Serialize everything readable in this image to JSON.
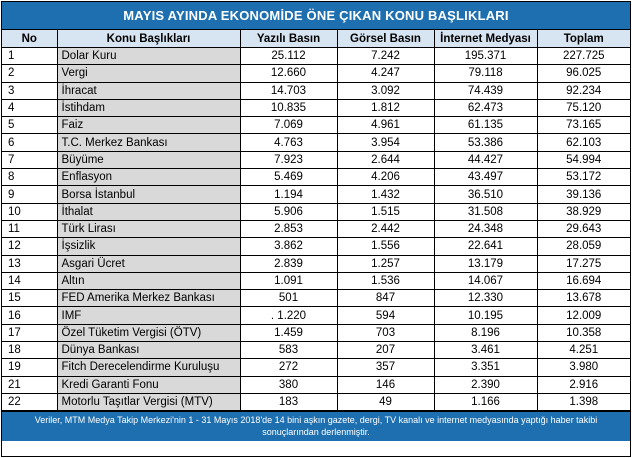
{
  "title": "MAYIS AYINDA EKONOMİDE ÖNE ÇIKAN KONU BAŞLIKLARI",
  "note": "Veriler, MTM Medya Takip Merkezi'nin 1 - 31 Mayıs 2018'de 14 bini aşkın gazete, dergi, TV kanalı ve internet medyasında yaptığı haber takibi sonuçlarından derlenmiştir.",
  "colors": {
    "header_band": "#1e6fb0",
    "column_header": "#d7e4f2",
    "topic_cell": "#d9d9d9"
  },
  "chart_data": {
    "type": "table",
    "columns": [
      "No",
      "Konu Başlıkları",
      "Yazılı Basın",
      "Görsel Basın",
      "İnternet Medyası",
      "Toplam"
    ],
    "rows": [
      [
        "1",
        "Dolar Kuru",
        "25.112",
        "7.242",
        "195.371",
        "227.725"
      ],
      [
        "2",
        "Vergi",
        "12.660",
        "4.247",
        "79.118",
        "96.025"
      ],
      [
        "3",
        "İhracat",
        "14.703",
        "3.092",
        "74.439",
        "92.234"
      ],
      [
        "4",
        "İstihdam",
        "10.835",
        "1.812",
        "62.473",
        "75.120"
      ],
      [
        "5",
        "Faiz",
        "7.069",
        "4.961",
        "61.135",
        "73.165"
      ],
      [
        "6",
        "T.C. Merkez Bankası",
        "4.763",
        "3.954",
        "53.386",
        "62.103"
      ],
      [
        "7",
        "Büyüme",
        "7.923",
        "2.644",
        "44.427",
        "54.994"
      ],
      [
        "8",
        "Enflasyon",
        "5.469",
        "4.206",
        "43.497",
        "53.172"
      ],
      [
        "9",
        "Borsa İstanbul",
        "1.194",
        "1.432",
        "36.510",
        "39.136"
      ],
      [
        "10",
        "İthalat",
        "5.906",
        "1.515",
        "31.508",
        "38.929"
      ],
      [
        "11",
        "Türk Lirası",
        "2.853",
        "2.442",
        "24.348",
        "29.643"
      ],
      [
        "12",
        "İşsizlik",
        "3.862",
        "1.556",
        "22.641",
        "28.059"
      ],
      [
        "13",
        "Asgari Ücret",
        "2.839",
        "1.257",
        "13.179",
        "17.275"
      ],
      [
        "14",
        "Altın",
        "1.091",
        "1.536",
        "14.067",
        "16.694"
      ],
      [
        "15",
        "FED Amerika Merkez Bankası",
        "501",
        "847",
        "12.330",
        "13.678"
      ],
      [
        "16",
        "IMF",
        ". 1.220",
        "594",
        "10.195",
        "12.009"
      ],
      [
        "17",
        "Özel Tüketim Vergisi (ÖTV)",
        "1.459",
        "703",
        "8.196",
        "10.358"
      ],
      [
        "18",
        "Dünya Bankası",
        "583",
        "207",
        "3.461",
        "4.251"
      ],
      [
        "19",
        "Fitch Derecelendirme Kuruluşu",
        "272",
        "357",
        "3.351",
        "3.980"
      ],
      [
        "21",
        "Kredi Garanti Fonu",
        "380",
        "146",
        "2.390",
        "2.916"
      ],
      [
        "22",
        "Motorlu Taşıtlar Vergisi (MTV)",
        "183",
        "49",
        "1.166",
        "1.398"
      ]
    ]
  }
}
